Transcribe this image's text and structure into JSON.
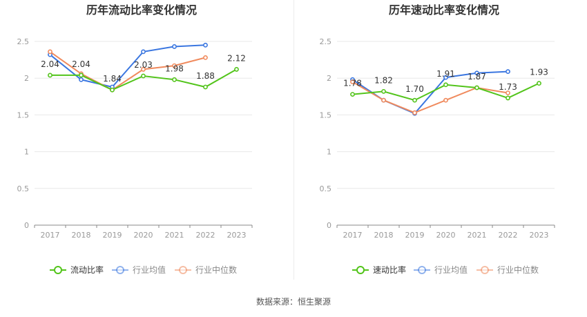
{
  "colors": {
    "primary": "#52c41a",
    "industry_avg": "#3a76e0",
    "industry_median": "#f08a5d",
    "grid": "#e8e8e8",
    "axis": "#999999",
    "label": "#333333",
    "title": "#333333"
  },
  "source_text": "数据来源：恒生聚源",
  "chart_data": [
    {
      "type": "line",
      "title": "历年流动比率变化情况",
      "categories": [
        "2017",
        "2018",
        "2019",
        "2020",
        "2021",
        "2022",
        "2023"
      ],
      "ylim": [
        0,
        2.5
      ],
      "yticks": [
        "0",
        "0.5",
        "1",
        "1.5",
        "2",
        "2.5"
      ],
      "series": [
        {
          "name": "流动比率",
          "role": "primary",
          "values": [
            2.04,
            2.04,
            1.84,
            2.03,
            1.98,
            1.88,
            2.12
          ],
          "labels": [
            "2.04",
            "2.04",
            "1.84",
            "2.03",
            "1.98",
            "1.88",
            "2.12"
          ]
        },
        {
          "name": "行业均值",
          "role": "industry_avg",
          "values": [
            2.32,
            1.98,
            1.88,
            2.36,
            2.43,
            2.45,
            null
          ]
        },
        {
          "name": "行业中位数",
          "role": "industry_median",
          "values": [
            2.36,
            2.06,
            1.84,
            2.12,
            2.17,
            2.28,
            null
          ]
        }
      ],
      "legend": [
        "流动比率",
        "行业均值",
        "行业中位数"
      ],
      "legend_position": "bottom",
      "grid": true
    },
    {
      "type": "line",
      "title": "历年速动比率变化情况",
      "categories": [
        "2017",
        "2018",
        "2019",
        "2020",
        "2021",
        "2022",
        "2023"
      ],
      "ylim": [
        0,
        2.5
      ],
      "yticks": [
        "0",
        "0.5",
        "1",
        "1.5",
        "2",
        "2.5"
      ],
      "series": [
        {
          "name": "速动比率",
          "role": "primary",
          "values": [
            1.78,
            1.82,
            1.7,
            1.91,
            1.87,
            1.73,
            1.93
          ],
          "labels": [
            "1.78",
            "1.82",
            "1.70",
            "1.91",
            "1.87",
            "1.73",
            "1.93"
          ]
        },
        {
          "name": "行业均值",
          "role": "industry_avg",
          "values": [
            1.98,
            1.7,
            1.52,
            2.01,
            2.07,
            2.09,
            null
          ]
        },
        {
          "name": "行业中位数",
          "role": "industry_median",
          "values": [
            1.95,
            1.7,
            1.53,
            1.7,
            1.87,
            1.8,
            null
          ]
        }
      ],
      "legend": [
        "速动比率",
        "行业均值",
        "行业中位数"
      ],
      "legend_position": "bottom",
      "grid": true
    }
  ]
}
